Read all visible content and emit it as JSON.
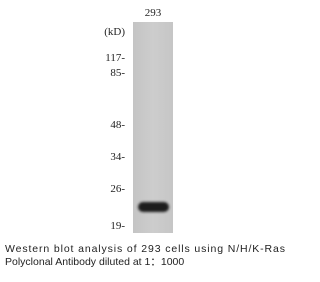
{
  "blot": {
    "lane_label": "293",
    "unit_label": "(kD)",
    "markers": [
      "117-",
      "85-",
      "48-",
      "34-",
      "26-",
      "19-"
    ]
  },
  "caption": {
    "lines": [
      "Western blot analysis of 293 cells using N/H/K-Ras",
      "Polyclonal Antibody diluted at 1：1000"
    ]
  }
}
